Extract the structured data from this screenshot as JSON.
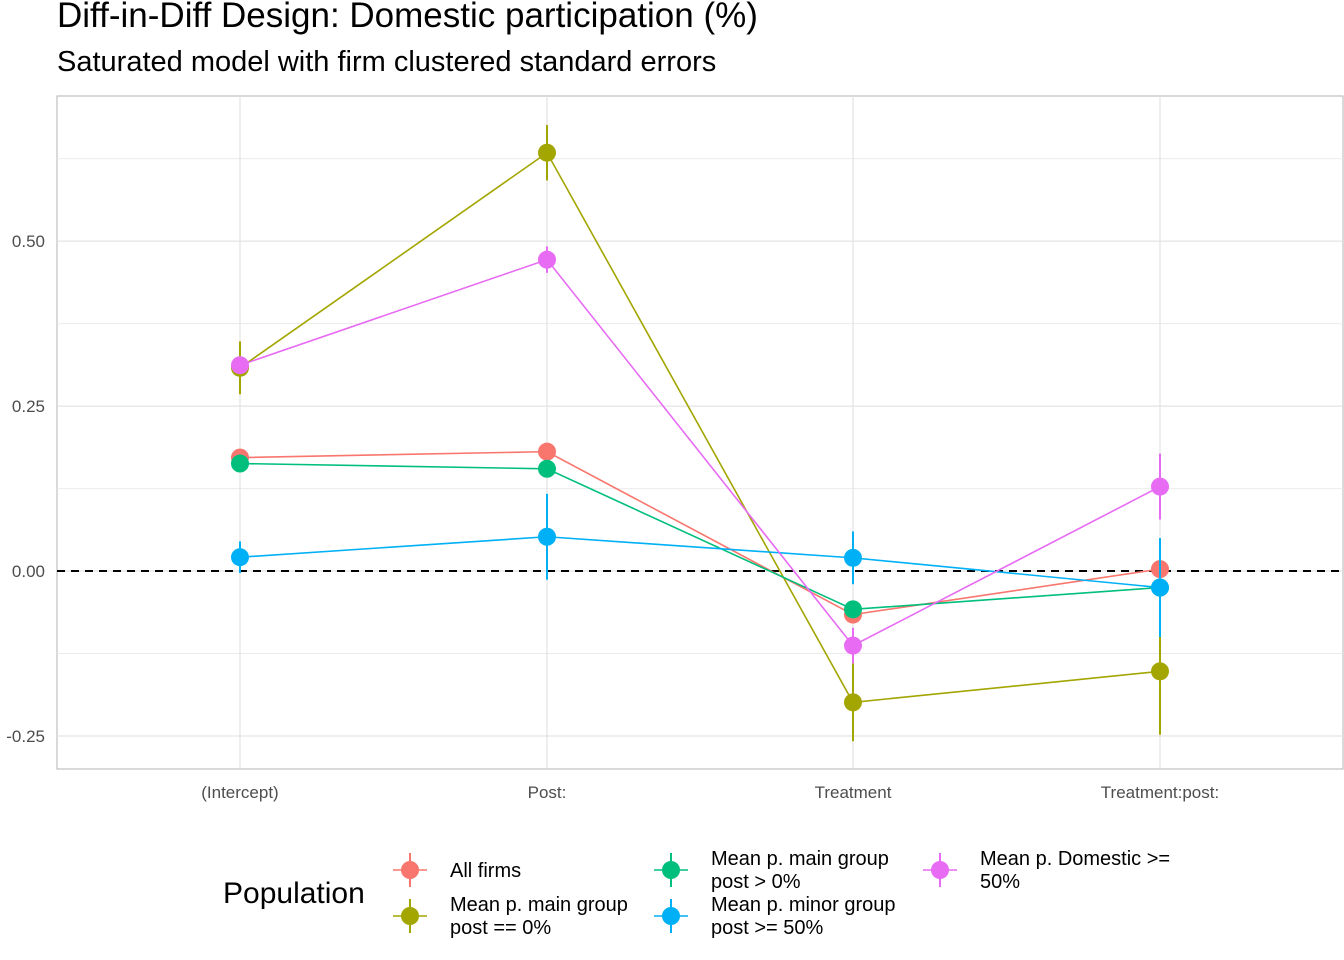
{
  "chart_data": {
    "type": "line",
    "title": "Diff-in-Diff Design: Domestic participation (%)",
    "subtitle": "Saturated model with firm clustered standard errors",
    "xlabel": "",
    "ylabel": "",
    "categories": [
      "(Intercept)",
      "Post:",
      "Treatment",
      "Treatment:post:"
    ],
    "y_ticks": [
      -0.25,
      0.0,
      0.25,
      0.5
    ],
    "y_tick_labels": [
      "-0.25",
      "0.00",
      "0.25",
      "0.50"
    ],
    "ylim": [
      -0.3,
      0.72
    ],
    "reference_line": {
      "y": 0,
      "style": "dashed"
    },
    "grid": true,
    "legend": {
      "title": "Population",
      "position": "bottom",
      "columns": [
        [
          0,
          1
        ],
        [
          2,
          3
        ],
        [
          4
        ]
      ]
    },
    "series": [
      {
        "name": "All firms",
        "label_lines": [
          "All firms"
        ],
        "color": "#F8766D",
        "values": [
          0.172,
          0.181,
          -0.066,
          0.003
        ],
        "lower": [
          null,
          null,
          null,
          null
        ],
        "upper": [
          null,
          null,
          null,
          null
        ]
      },
      {
        "name": "Mean p. main group post == 0%",
        "label_lines": [
          "Mean p. main group",
          "post == 0%"
        ],
        "color": "#A3A500",
        "values": [
          0.308,
          0.634,
          -0.199,
          -0.152
        ],
        "lower": [
          0.268,
          0.592,
          -0.258,
          -0.248
        ],
        "upper": [
          0.348,
          0.676,
          -0.14,
          -0.058
        ]
      },
      {
        "name": "Mean p. main group post > 0%",
        "label_lines": [
          "Mean p. main group",
          "post > 0%"
        ],
        "color": "#00BF7D",
        "values": [
          0.163,
          0.155,
          -0.058,
          -0.025
        ],
        "lower": [
          null,
          null,
          null,
          null
        ],
        "upper": [
          null,
          null,
          null,
          null
        ]
      },
      {
        "name": "Mean p. minor group post >= 50%",
        "label_lines": [
          "Mean p. minor group",
          "post >= 50%"
        ],
        "color": "#00B0F6",
        "values": [
          0.021,
          0.052,
          0.02,
          -0.025
        ],
        "lower": [
          -0.003,
          -0.013,
          -0.02,
          -0.1
        ],
        "upper": [
          0.045,
          0.117,
          0.06,
          0.05
        ]
      },
      {
        "name": "Mean p. Domestic >= 50%",
        "label_lines": [
          "Mean p. Domestic >=",
          "50%"
        ],
        "color": "#E76BF3",
        "values": [
          0.312,
          0.472,
          -0.113,
          0.128
        ],
        "lower": [
          null,
          0.452,
          -0.14,
          0.078
        ],
        "upper": [
          null,
          0.492,
          -0.086,
          0.178
        ]
      }
    ]
  }
}
